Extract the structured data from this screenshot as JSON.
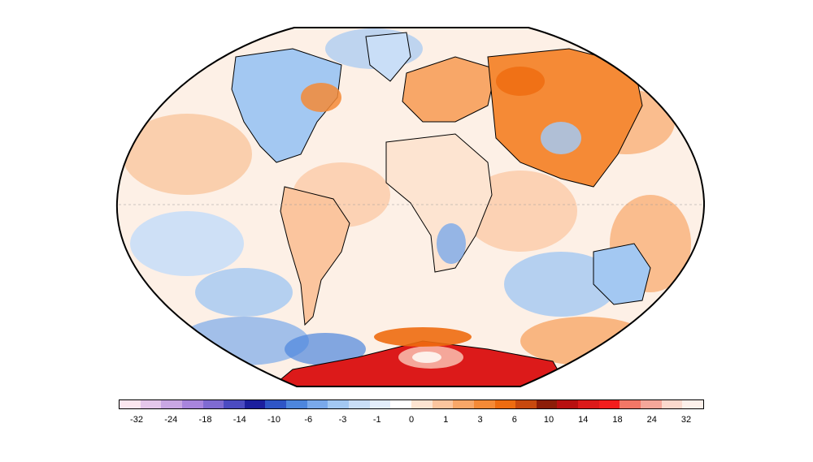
{
  "map": {
    "projection": "Winkel Tripel",
    "field": "temperature anomaly",
    "palette_note": "blue = negative, orange/red = positive",
    "colors": {
      "ocean_base": "#fdf0e6",
      "land_outline": "#000000",
      "border_outline": "#2b2b2b"
    }
  },
  "colorbar": {
    "colors": [
      "#fbe6ef",
      "#e4c7ea",
      "#c9a7e3",
      "#a885dd",
      "#7f6bd1",
      "#4b4bc1",
      "#1c1f9e",
      "#2e55c6",
      "#4d86dd",
      "#7aa9ea",
      "#a3c8f2",
      "#c9def7",
      "#e3eefb",
      "#ffffff",
      "#fde4d1",
      "#fbc59e",
      "#f8a768",
      "#f58a36",
      "#ee6c10",
      "#c8490e",
      "#8c1d08",
      "#b81010",
      "#dc1a1a",
      "#f21d1d",
      "#f37766",
      "#f5a79a",
      "#fbd9cd",
      "#fdf0ea"
    ],
    "labels": [
      "-32",
      "-24",
      "-18",
      "-14",
      "-10",
      "-6",
      "-3",
      "-1",
      "0",
      "1",
      "3",
      "6",
      "10",
      "14",
      "18",
      "24",
      "32"
    ]
  }
}
